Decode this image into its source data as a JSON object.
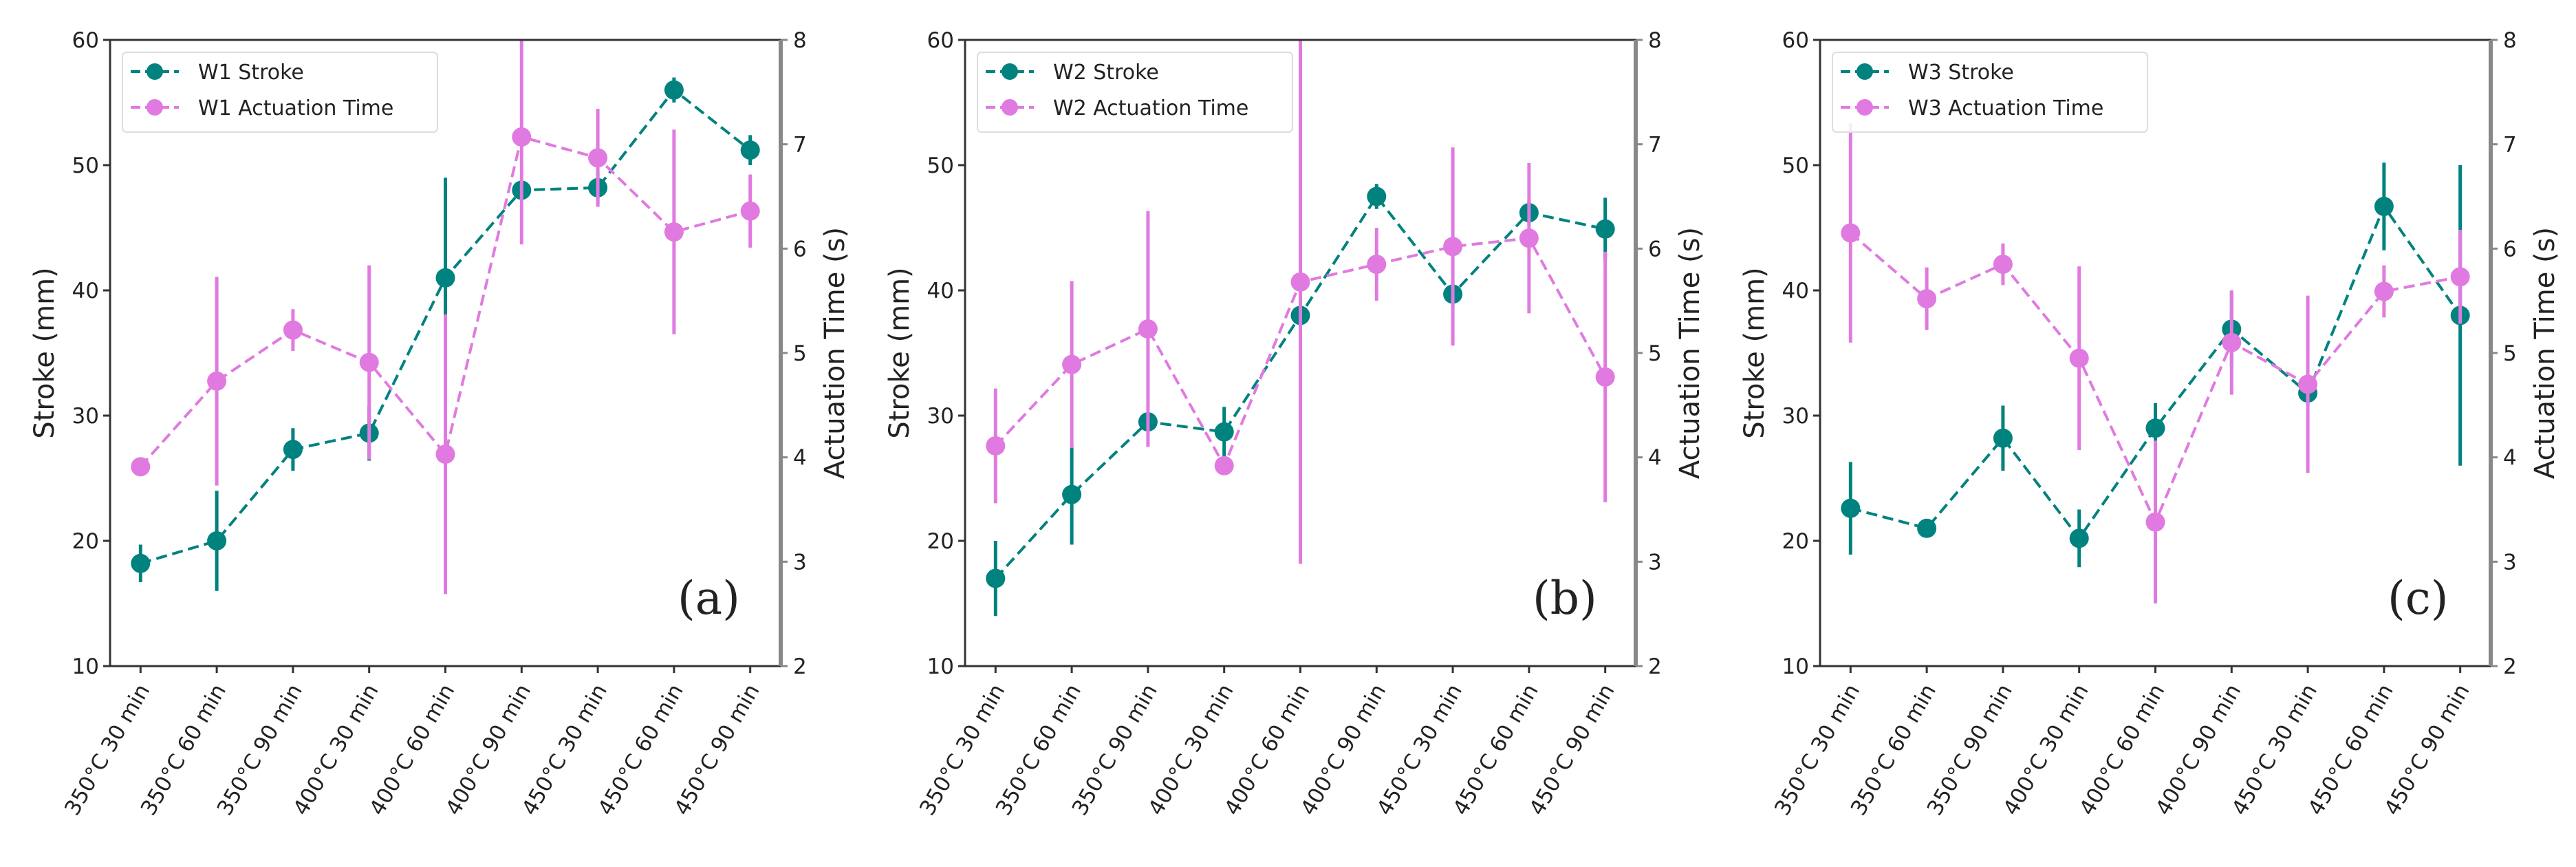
{
  "colors": {
    "stroke": "#00827f",
    "time": "#e07ae0",
    "axis": "#333333",
    "right_axis": "#888888"
  },
  "chart_data": [
    {
      "type": "line",
      "panel_label": "(a)",
      "categories": [
        "350°C 30 min",
        "350°C 60 min",
        "350°C 90 min",
        "400°C 30 min",
        "400°C 60 min",
        "400°C 90 min",
        "450°C 30 min",
        "450°C 60 min",
        "450°C 90 min"
      ],
      "ylabel": "Stroke (mm)",
      "ylim": [
        10,
        60
      ],
      "yticks": [
        10,
        20,
        30,
        40,
        50,
        60
      ],
      "y2label": "Actuation Time (s)",
      "y2lim": [
        2,
        8
      ],
      "y2ticks": [
        2,
        3,
        4,
        5,
        6,
        7,
        8
      ],
      "legend_position": "top-left",
      "series": [
        {
          "name": "W1 Stroke",
          "axis": "left",
          "values": [
            18.2,
            20.0,
            27.3,
            28.6,
            41.0,
            48.0,
            48.2,
            56.0,
            51.2
          ],
          "errors": [
            1.5,
            4.0,
            1.7,
            2.2,
            8.0,
            0.5,
            1.3,
            1.0,
            1.2
          ]
        },
        {
          "name": "W1 Actuation Time",
          "axis": "right",
          "values": [
            3.91,
            4.73,
            5.22,
            4.91,
            4.03,
            7.07,
            6.87,
            6.16,
            6.36
          ],
          "errors": [
            0.05,
            1.0,
            0.2,
            0.93,
            1.34,
            1.03,
            0.47,
            0.98,
            0.35
          ]
        }
      ]
    },
    {
      "type": "line",
      "panel_label": "(b)",
      "categories": [
        "350°C 30 min",
        "350°C 60 min",
        "350°C 90 min",
        "400°C 30 min",
        "400°C 60 min",
        "400°C 90 min",
        "450°C 30 min",
        "450°C 60 min",
        "450°C 90 min"
      ],
      "ylabel": "Stroke (mm)",
      "ylim": [
        10,
        60
      ],
      "yticks": [
        10,
        20,
        30,
        40,
        50,
        60
      ],
      "y2label": "Actuation Time (s)",
      "y2lim": [
        2,
        8
      ],
      "y2ticks": [
        2,
        3,
        4,
        5,
        6,
        7,
        8
      ],
      "legend_position": "top-left",
      "series": [
        {
          "name": "W2 Stroke",
          "axis": "left",
          "values": [
            17.0,
            23.7,
            29.5,
            28.7,
            38.0,
            47.5,
            39.7,
            46.2,
            44.9
          ],
          "errors": [
            3.0,
            4.0,
            0.5,
            2.0,
            1.0,
            1.0,
            1.0,
            1.0,
            2.5
          ]
        },
        {
          "name": "W2 Actuation Time",
          "axis": "right",
          "values": [
            4.11,
            4.89,
            5.23,
            3.92,
            5.68,
            5.85,
            6.02,
            6.1,
            4.77
          ],
          "errors": [
            0.55,
            0.8,
            1.13,
            0.05,
            2.7,
            0.35,
            0.95,
            0.72,
            1.2
          ]
        }
      ]
    },
    {
      "type": "line",
      "panel_label": "(c)",
      "categories": [
        "350°C 30 min",
        "350°C 60 min",
        "350°C 90 min",
        "400°C 30 min",
        "400°C 60 min",
        "400°C 90 min",
        "450°C 30 min",
        "450°C 60 min",
        "450°C 90 min"
      ],
      "ylabel": "Stroke (mm)",
      "ylim": [
        10,
        60
      ],
      "yticks": [
        10,
        20,
        30,
        40,
        50,
        60
      ],
      "y2label": "Actuation Time (s)",
      "y2lim": [
        2,
        8
      ],
      "y2ticks": [
        2,
        3,
        4,
        5,
        6,
        7,
        8
      ],
      "legend_position": "top-left",
      "series": [
        {
          "name": "W3 Stroke",
          "axis": "left",
          "values": [
            22.6,
            21.0,
            28.2,
            20.2,
            29.0,
            36.9,
            31.8,
            46.7,
            38.0
          ],
          "errors": [
            3.7,
            0.3,
            2.6,
            2.3,
            2.0,
            3.0,
            1.0,
            3.5,
            12.0
          ]
        },
        {
          "name": "W3 Actuation Time",
          "axis": "right",
          "values": [
            6.15,
            5.52,
            5.85,
            4.95,
            3.38,
            5.1,
            4.7,
            5.59,
            5.73
          ],
          "errors": [
            1.05,
            0.3,
            0.2,
            0.88,
            0.78,
            0.5,
            0.85,
            0.25,
            0.45
          ]
        }
      ]
    }
  ]
}
